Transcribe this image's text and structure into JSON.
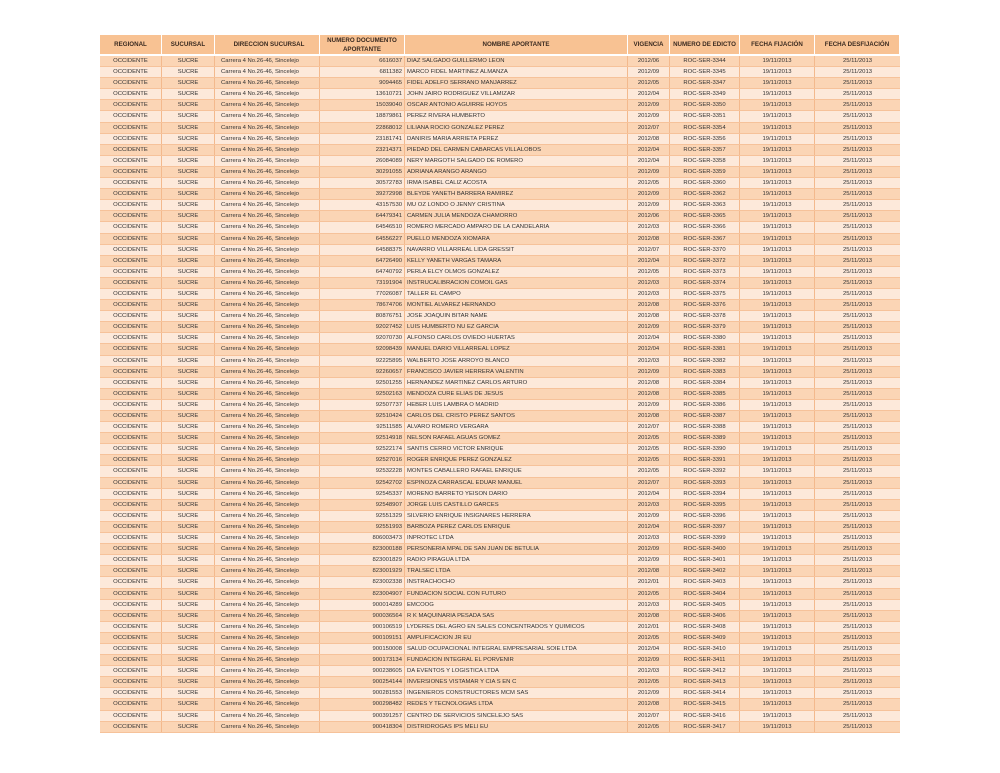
{
  "table": {
    "headers": [
      "REGIONAL",
      "SUCURSAL",
      "DIRECCION SUCURSAL",
      "NUMERO DOCUMENTO APORTANTE",
      "NOMBRE APORTANTE",
      "VIGENCIA",
      "NUMERO DE EDICTO",
      "FECHA FIJACIÓN",
      "FECHA DESFIJACIÓN"
    ],
    "shared": {
      "regional": "OCCIDENTE",
      "sucursal": "SUCRE",
      "direccion": "Carrera 4 No.26-46, Sincelejo",
      "fecha_fijacion": "19/11/2013",
      "fecha_desfijacion": "25/11/2013"
    },
    "colors": {
      "header": "#f8c293",
      "row_dark": "#fbd5b5",
      "row_light": "#fde9da"
    },
    "rows": [
      [
        "6616037",
        "DIAZ SALGADO GUILLERMO LEON",
        "2012/06",
        "ROC-SER-3344"
      ],
      [
        "6811382",
        "MARCO FIDEL MARTINEZ ALMANZA",
        "2012/09",
        "ROC-SER-3345"
      ],
      [
        "9094465",
        "FIDEL ADELFO SERRANO MANJARREZ",
        "2012/05",
        "ROC-SER-3347"
      ],
      [
        "13610721",
        "JOHN JAIRO RODRIGUEZ VILLAMIZAR",
        "2012/04",
        "ROC-SER-3349"
      ],
      [
        "15039040",
        "OSCAR ANTONIO AGUIRRE HOYOS",
        "2012/09",
        "ROC-SER-3350"
      ],
      [
        "18879861",
        "PEREZ   RIVERA  HUMBERTO",
        "2012/09",
        "ROC-SER-3351"
      ],
      [
        "22868012",
        "LILIANA ROCIO GONZALEZ PEREZ",
        "2012/07",
        "ROC-SER-3354"
      ],
      [
        "23181741",
        "DANIRIS MARIA ARRIETA PEREZ",
        "2012/08",
        "ROC-SER-3356"
      ],
      [
        "23214371",
        "PIEDAD DEL CARMEN CABARCAS VILLALOBOS",
        "2012/04",
        "ROC-SER-3357"
      ],
      [
        "26084089",
        "NERY MARGOTH SALGADO DE ROMERO",
        "2012/04",
        "ROC-SER-3358"
      ],
      [
        "30291055",
        "ADRIANA ARANGO ARANGO",
        "2012/09",
        "ROC-SER-3359"
      ],
      [
        "30572783",
        "IRMA ISABEL CALIZ ACOSTA",
        "2012/05",
        "ROC-SER-3360"
      ],
      [
        "39272998",
        "BLEYDE YANETH BARRERA RAMIREZ",
        "2012/09",
        "ROC-SER-3362"
      ],
      [
        "43157530",
        "MU OZ LONDO O JENNY CRISTINA",
        "2012/09",
        "ROC-SER-3363"
      ],
      [
        "64479341",
        "CARMEN JULIA MENDOZA CHAMORRO",
        "2012/06",
        "ROC-SER-3365"
      ],
      [
        "64546510",
        "ROMERO MERCADO AMPARO DE LA CANDELARIA",
        "2012/03",
        "ROC-SER-3366"
      ],
      [
        "64556227",
        "PUELLO MENDOZA XIOMARA",
        "2012/08",
        "ROC-SER-3367"
      ],
      [
        "64588375",
        "NAVARRO VILLARREAL LIDA GRESSIT",
        "2012/07",
        "ROC-SER-3370"
      ],
      [
        "64726490",
        "KELLY YANETH VARGAS TAMARA",
        "2012/04",
        "ROC-SER-3372"
      ],
      [
        "64740792",
        "PERLA ELCY OLMOS GONZALEZ",
        "2012/05",
        "ROC-SER-3373"
      ],
      [
        "73191904",
        "INSTRUCALIBRACION COMOIL  GAS",
        "2012/03",
        "ROC-SER-3374"
      ],
      [
        "77026087",
        "TALLER EL CAMPO",
        "2012/03",
        "ROC-SER-3375"
      ],
      [
        "78674706",
        "MONTIEL ALVAREZ HERNANDO",
        "2012/08",
        "ROC-SER-3376"
      ],
      [
        "80876751",
        "JOSE JOAQUIN BITAR NAME",
        "2012/08",
        "ROC-SER-3378"
      ],
      [
        "92027452",
        "LUIS HUMBERTO NU EZ GARCIA",
        "2012/09",
        "ROC-SER-3379"
      ],
      [
        "92070730",
        "ALFONSO CARLOS OVIEDO HUERTAS",
        "2012/04",
        "ROC-SER-3380"
      ],
      [
        "92098439",
        "MANUEL DARIO VILLARREAL LOPEZ",
        "2012/04",
        "ROC-SER-3381"
      ],
      [
        "92225895",
        "WALBERTO JOSE ARROYO BLANCO",
        "2012/03",
        "ROC-SER-3382"
      ],
      [
        "92260657",
        "FRANCISCO JAVIER HERRERA VALENTIN",
        "2012/09",
        "ROC-SER-3383"
      ],
      [
        "92501255",
        "HERNANDEZ MARTINEZ CARLOS ARTURO",
        "2012/08",
        "ROC-SER-3384"
      ],
      [
        "92502163",
        "MENDOZA CURE ELIAS DE JESUS",
        "2012/08",
        "ROC-SER-3385"
      ],
      [
        "92507737",
        "HEBER LUIS LAMBRA O MADRID",
        "2012/09",
        "ROC-SER-3386"
      ],
      [
        "92510424",
        "CARLOS DEL CRISTO PEREZ SANTOS",
        "2012/08",
        "ROC-SER-3387"
      ],
      [
        "92511585",
        "ALVARO ROMERO VERGARA",
        "2012/07",
        "ROC-SER-3388"
      ],
      [
        "92514918",
        "NELSON RAFAEL AGUAS GOMEZ",
        "2012/05",
        "ROC-SER-3389"
      ],
      [
        "92522174",
        "SANTIS CERRO VICTOR ENRIQUE",
        "2012/05",
        "ROC-SER-3390"
      ],
      [
        "92527016",
        "ROGER ENRIQUE PEREZ GONZALEZ",
        "2012/05",
        "ROC-SER-3391"
      ],
      [
        "92532228",
        "MONTES CABALLERO RAFAEL ENRIQUE",
        "2012/05",
        "ROC-SER-3392"
      ],
      [
        "92542702",
        "ESPINOZA CARRASCAL EDUAR MANUEL",
        "2012/07",
        "ROC-SER-3393"
      ],
      [
        "92545337",
        "MORENO BARRETO YEISON DARIO",
        "2012/04",
        "ROC-SER-3394"
      ],
      [
        "92548907",
        "JORGE LUIS CASTILLO GARCES",
        "2012/03",
        "ROC-SER-3395"
      ],
      [
        "92551329",
        "SILVERIO ENRIQUE INSIGNARES HERRERA",
        "2012/09",
        "ROC-SER-3396"
      ],
      [
        "92551993",
        "BARBOZA PEREZ CARLOS ENRIQUE",
        "2012/04",
        "ROC-SER-3397"
      ],
      [
        "806003473",
        "INPROTEC LTDA",
        "2012/03",
        "ROC-SER-3399"
      ],
      [
        "823000188",
        "PERSONERIA MPAL DE SAN JUAN DE BETULIA",
        "2012/09",
        "ROC-SER-3400"
      ],
      [
        "823001829",
        "RADIO PIRAGUA LTDA",
        "2012/09",
        "ROC-SER-3401"
      ],
      [
        "823001929",
        "TRALSEC LTDA",
        "2012/08",
        "ROC-SER-3402"
      ],
      [
        "823002338",
        "INSTRACHOCHO",
        "2012/01",
        "ROC-SER-3403"
      ],
      [
        "823004907",
        "FUNDACION SOCIAL CON FUTURO",
        "2012/05",
        "ROC-SER-3404"
      ],
      [
        "900014289",
        "EMCOOG",
        "2012/03",
        "ROC-SER-3405"
      ],
      [
        "900036564",
        "R K MAQUINARIA PESADA SAS",
        "2012/08",
        "ROC-SER-3406"
      ],
      [
        "900106519",
        "LYDERES DEL AGRO EN SALES CONCENTRADOS Y QUIMICOS",
        "2012/01",
        "ROC-SER-3408"
      ],
      [
        "900109151",
        "AMPLIFICACION JR EU",
        "2012/05",
        "ROC-SER-3409"
      ],
      [
        "900150008",
        "SALUD OCUPACIONAL INTEGRAL EMPRESARIAL SOIE LTDA",
        "2012/04",
        "ROC-SER-3410"
      ],
      [
        "900173134",
        "FUNDACION INTEGRAL EL PORVENIR",
        "2012/09",
        "ROC-SER-3411"
      ],
      [
        "900238605",
        "DA EVENTOS Y LOGISTICA LTDA",
        "2012/03",
        "ROC-SER-3412"
      ],
      [
        "900254144",
        "INVERSIONES VISTAMAR Y CIA S EN C",
        "2012/05",
        "ROC-SER-3413"
      ],
      [
        "900281553",
        "INGENIEROS CONSTRUCTORES MCM SAS",
        "2012/09",
        "ROC-SER-3414"
      ],
      [
        "900298482",
        "REDES Y TECNOLOGIAS LTDA",
        "2012/08",
        "ROC-SER-3415"
      ],
      [
        "900391257",
        "CENTRO DE SERVICIOS SINCELEJO SAS",
        "2012/07",
        "ROC-SER-3416"
      ],
      [
        "900418304",
        "DISTRIDROGAS IPS MELI EU",
        "2012/05",
        "ROC-SER-3417"
      ]
    ]
  }
}
